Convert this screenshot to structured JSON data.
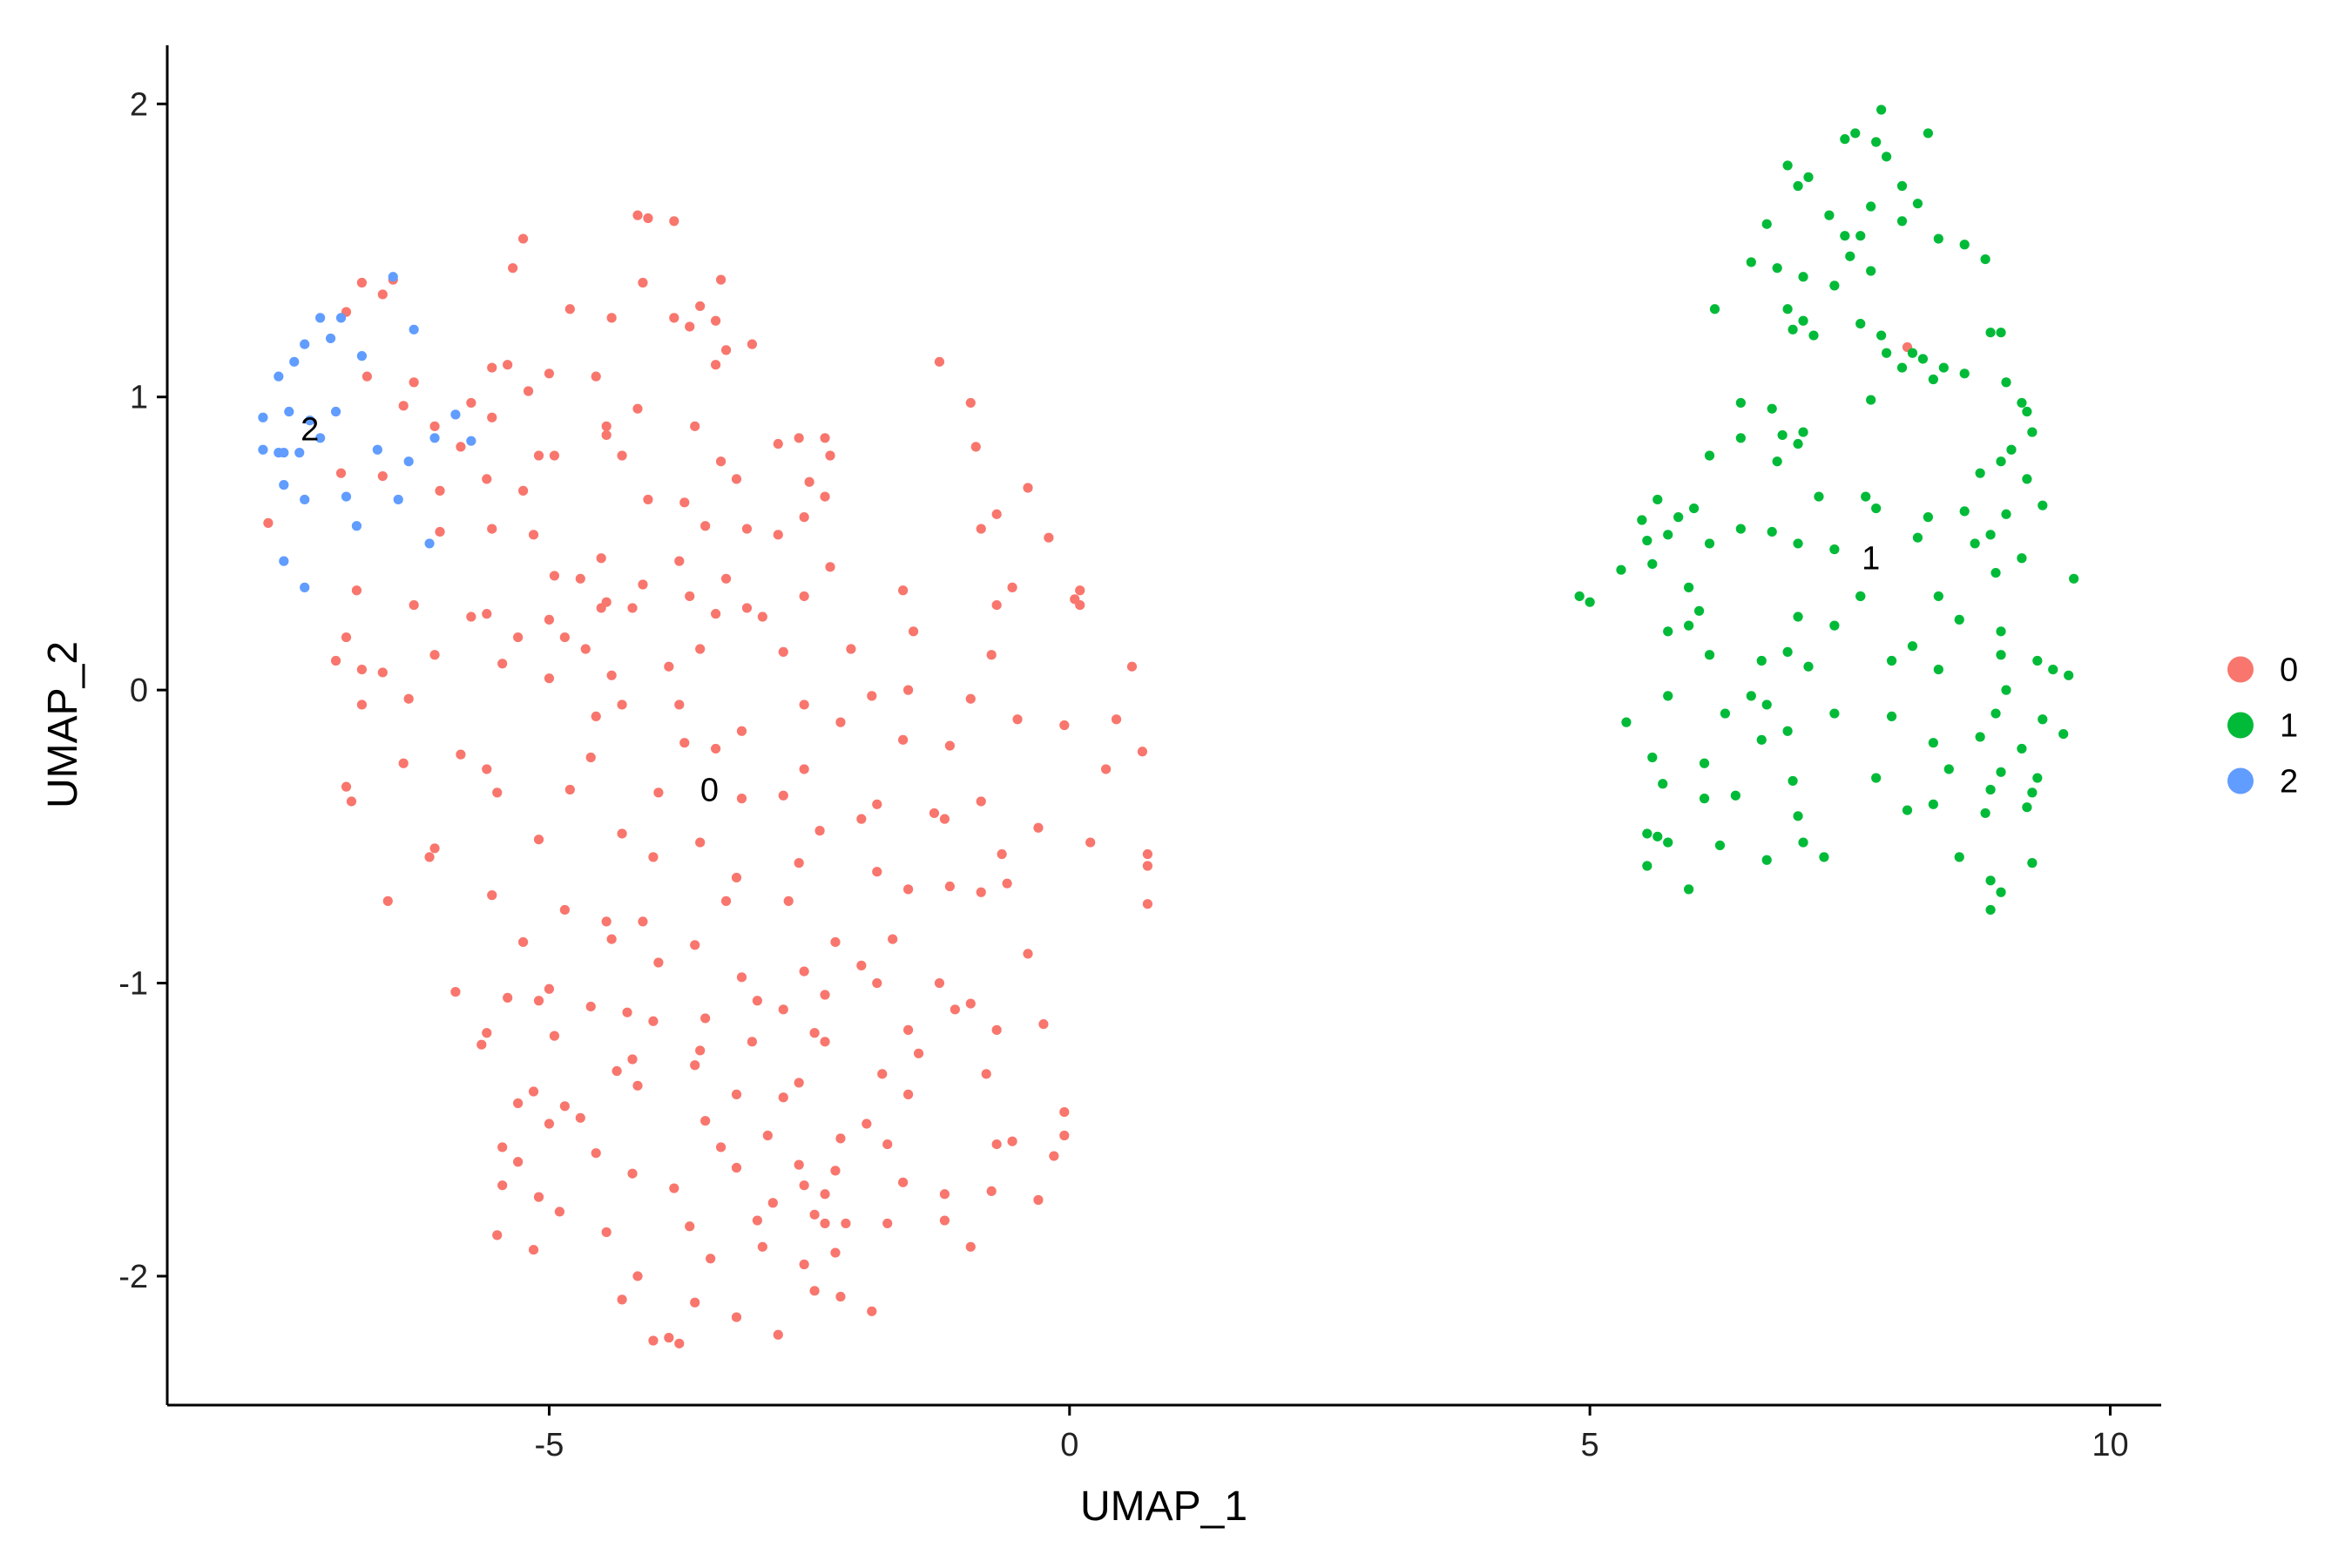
{
  "chart_data": {
    "type": "scatter",
    "x_label": "UMAP_1",
    "y_label": "UMAP_2",
    "xlim": [
      -8.67,
      10.49
    ],
    "ylim": [
      -2.44,
      2.2
    ],
    "xticks": [
      -5,
      0,
      5,
      10
    ],
    "yticks": [
      -2,
      -1,
      0,
      1,
      2
    ],
    "grid": false,
    "legend": "right",
    "annotations": [
      {
        "text": "0",
        "x": -3.46,
        "y": -0.34
      },
      {
        "text": "1",
        "x": 7.7,
        "y": 0.45
      },
      {
        "text": "2",
        "x": -7.3,
        "y": 0.89
      }
    ],
    "series": [
      {
        "name": "0",
        "color": "#F8766D",
        "x": [
          -4.15,
          -4.05,
          -3.8,
          -5.25,
          -5.35,
          -4.1,
          -3.35,
          -6.5,
          -6.8,
          -6.6,
          -6.95,
          -4.8,
          -3.55,
          -3.8,
          -4.4,
          -3.65,
          -3.4,
          -3.3,
          -3.05,
          -1.25,
          -3.4,
          -5.55,
          -5.4,
          -5.0,
          -4.55,
          -6.75,
          -6.3,
          -5.2,
          -5.75,
          -0.95,
          -4.15,
          -6.4,
          -6.1,
          -5.55,
          -4.45,
          -3.6,
          -4.45,
          -2.6,
          -2.35,
          -2.8,
          -5.85,
          -5.1,
          -4.95,
          -4.3,
          -3.35,
          -2.3,
          -0.9,
          -7.0,
          -6.6,
          -5.6,
          -3.2,
          -2.5,
          -6.05,
          -5.25,
          -4.05,
          -0.4,
          -2.35,
          -3.7,
          -2.55,
          -0.7,
          -7.7,
          -6.05,
          -5.55,
          -5.15,
          -3.5,
          -3.1,
          -2.8,
          -0.85,
          -0.2,
          -4.5,
          -3.75,
          -2.3,
          -4.7,
          -4.95,
          -3.3,
          -4.1,
          -6.85,
          -1.6,
          -0.55,
          0.1,
          0.05,
          -6.3,
          -4.45,
          -4.5,
          -3.65,
          -3.1,
          -2.55,
          -5.75,
          -5.6,
          -5.0,
          -4.2,
          -2.95,
          -3.4,
          -0.7,
          0.1,
          -6.95,
          -4.85,
          -3.55,
          -1.5,
          -6.1,
          -5.3,
          -4.65,
          -2.1,
          -7.05,
          -6.8,
          -5.45,
          -5.0,
          -4.4,
          -3.85,
          -2.75,
          -1.55,
          -0.75,
          0.6,
          -6.6,
          -4.3,
          -3.75,
          -2.55,
          -1.9,
          -0.95,
          -6.8,
          -6.35,
          -4.55,
          -3.15,
          -2.2,
          -0.5,
          0.45,
          -6.4,
          -5.6,
          -3.4,
          -1.6,
          -0.05,
          0.35,
          -5.85,
          -4.6,
          -3.7,
          -2.55,
          -1.15,
          0.7,
          -6.95,
          -5.5,
          -4.8,
          -3.95,
          -2.75,
          -1.85,
          -0.85,
          -6.9,
          -3.15,
          -1.3,
          -2.0,
          -6.1,
          -5.1,
          -4.3,
          -3.55,
          -2.4,
          -1.2,
          -0.3,
          0.2,
          -6.15,
          -4.0,
          -2.6,
          -1.85,
          -0.65,
          0.75,
          -3.2,
          -1.15,
          -0.85,
          0.75,
          0.75,
          -6.55,
          -5.55,
          -4.85,
          -3.3,
          -2.7,
          -1.55,
          -0.6,
          -4.45,
          -4.1,
          -3.6,
          -2.25,
          -1.7,
          -5.25,
          -4.4,
          -3.95,
          -2.55,
          -0.4,
          -5.9,
          -5.4,
          -3.15,
          -2.0,
          -1.25,
          -4.6,
          -3.0,
          -2.35,
          -1.85,
          -5.0,
          -5.1,
          -4.25,
          -3.5,
          -2.75,
          -1.1,
          -0.95,
          -4.0,
          -2.45,
          -1.55,
          -0.25,
          -5.6,
          -4.95,
          -3.55,
          -2.35,
          -1.45,
          -0.7,
          -5.65,
          -4.2,
          -3.05,
          -1.8,
          -4.35,
          -3.6,
          -2.6,
          -1.55,
          -0.8,
          -4.15,
          -2.75,
          -3.2,
          -5.15,
          -4.7,
          -3.5,
          -1.95,
          -5.3,
          -5.0,
          -0.05,
          -4.85,
          -2.2,
          -0.55,
          -5.45,
          -3.35,
          -2.9,
          -1.75,
          -0.05,
          -0.15,
          -4.55,
          -2.6,
          -0.7,
          -5.3,
          -3.2,
          -1.6,
          -0.75,
          -4.2,
          -2.25,
          -5.45,
          -3.8,
          -2.55,
          -1.2,
          -2.35,
          -5.1,
          -2.85,
          -3.0,
          -0.3,
          -4.9,
          -2.45,
          -5.5,
          -3.65,
          -2.95,
          -2.15,
          -1.75,
          -4.45,
          -2.35,
          -1.2,
          -3.45,
          -2.25,
          -0.95,
          -5.15,
          -2.55,
          -4.15,
          -2.45,
          -2.2,
          -4.3,
          -3.6,
          -3.2,
          -1.9,
          -3.85,
          -2.8,
          -3.75,
          -4.0,
          8.05
        ],
        "values": [
          1.62,
          1.61,
          1.6,
          1.54,
          1.44,
          1.39,
          1.4,
          1.4,
          1.39,
          1.35,
          1.29,
          1.3,
          1.31,
          1.27,
          1.27,
          1.24,
          1.26,
          1.16,
          1.18,
          1.12,
          1.11,
          1.1,
          1.11,
          1.08,
          1.07,
          1.07,
          1.05,
          1.02,
          0.98,
          0.98,
          0.96,
          0.97,
          0.9,
          0.93,
          0.9,
          0.9,
          0.87,
          0.86,
          0.86,
          0.84,
          0.83,
          0.8,
          0.8,
          0.8,
          0.78,
          0.8,
          0.83,
          0.74,
          0.73,
          0.72,
          0.72,
          0.71,
          0.68,
          0.68,
          0.65,
          0.69,
          0.66,
          0.64,
          0.59,
          0.6,
          0.57,
          0.54,
          0.55,
          0.53,
          0.56,
          0.55,
          0.53,
          0.55,
          0.52,
          0.45,
          0.44,
          0.42,
          0.38,
          0.39,
          0.38,
          0.36,
          0.34,
          0.34,
          0.35,
          0.34,
          0.31,
          0.29,
          0.3,
          0.28,
          0.32,
          0.28,
          0.32,
          0.25,
          0.26,
          0.24,
          0.28,
          0.25,
          0.26,
          0.29,
          0.29,
          0.18,
          0.18,
          0.14,
          0.2,
          0.12,
          0.18,
          0.14,
          0.14,
          0.1,
          0.07,
          0.09,
          0.04,
          0.05,
          0.08,
          0.13,
          0.0,
          0.12,
          0.08,
          0.06,
          -0.05,
          -0.05,
          -0.05,
          -0.02,
          -0.03,
          -0.05,
          -0.03,
          -0.09,
          -0.14,
          -0.11,
          -0.1,
          -0.1,
          -0.25,
          -0.27,
          -0.2,
          -0.17,
          -0.12,
          -0.27,
          -0.22,
          -0.23,
          -0.18,
          -0.27,
          -0.19,
          -0.21,
          -0.33,
          -0.35,
          -0.34,
          -0.35,
          -0.36,
          -0.39,
          -0.38,
          -0.38,
          -0.37,
          -0.42,
          -0.44,
          -0.54,
          -0.51,
          -0.49,
          -0.52,
          -0.48,
          -0.44,
          -0.47,
          -0.52,
          -0.57,
          -0.57,
          -0.59,
          -0.62,
          -0.56,
          -0.56,
          -0.64,
          -0.67,
          -0.69,
          -0.6,
          -0.73,
          -0.72,
          -0.7,
          -0.75,
          -0.72,
          -0.72,
          -0.68,
          -0.66,
          -0.79,
          -0.79,
          -0.87,
          -0.86,
          -0.85,
          -0.86,
          -0.85,
          -0.93,
          -0.96,
          -0.9,
          -1.03,
          -1.05,
          -0.98,
          -0.94,
          -1.0,
          -1.08,
          -1.06,
          -1.04,
          -1.0,
          -1.02,
          -1.06,
          -1.1,
          -1.12,
          -1.09,
          -1.09,
          -1.07,
          -1.13,
          -1.17,
          -1.16,
          -1.14,
          -1.17,
          -1.18,
          -1.23,
          -1.2,
          -1.24,
          -1.16,
          -1.21,
          -1.26,
          -1.2,
          -1.31,
          -1.3,
          -1.28,
          -1.34,
          -1.38,
          -1.31,
          -1.35,
          -1.39,
          -1.38,
          -1.37,
          -1.46,
          -1.47,
          -1.48,
          -1.41,
          -1.48,
          -1.44,
          -1.42,
          -1.53,
          -1.54,
          -1.56,
          -1.56,
          -1.52,
          -1.55,
          -1.52,
          -1.59,
          -1.58,
          -1.62,
          -1.55,
          -1.61,
          -1.63,
          -1.68,
          -1.71,
          -1.65,
          -1.64,
          -1.69,
          -1.7,
          -1.69,
          -1.72,
          -1.72,
          -1.73,
          -1.75,
          -1.81,
          -1.74,
          -1.78,
          -1.79,
          -1.86,
          -1.83,
          -1.9,
          -1.82,
          -1.82,
          -1.85,
          -1.82,
          -1.81,
          -1.94,
          -1.92,
          -1.9,
          -1.91,
          -1.96,
          -2.0,
          -2.05,
          -2.07,
          -2.08,
          -2.09,
          -2.14,
          -2.12,
          -2.21,
          -2.2,
          -2.23,
          -2.22,
          1.17
        ]
      },
      {
        "name": "1",
        "color": "#00BA38",
        "x": [
          7.8,
          7.55,
          7.45,
          8.25,
          7.75,
          7.85,
          6.9,
          7.1,
          7.0,
          8.0,
          8.15,
          7.7,
          7.3,
          8.0,
          7.6,
          8.35,
          6.7,
          7.45,
          8.6,
          7.5,
          6.8,
          7.05,
          7.7,
          8.8,
          6.55,
          7.35,
          6.2,
          6.9,
          7.05,
          6.95,
          7.15,
          7.6,
          7.8,
          7.85,
          8.1,
          8.2,
          8.4,
          8.6,
          8.85,
          8.95,
          8.0,
          8.3,
          9.0,
          9.15,
          9.2,
          6.45,
          6.75,
          7.7,
          6.45,
          6.85,
          7.05,
          7.0,
          6.15,
          6.8,
          8.95,
          9.25,
          9.05,
          8.75,
          9.2,
          5.65,
          5.85,
          6.0,
          5.5,
          7.2,
          7.65,
          7.75,
          8.25,
          8.6,
          9.0,
          9.35,
          5.75,
          5.55,
          6.15,
          6.45,
          6.75,
          7.0,
          7.35,
          8.15,
          8.85,
          8.7,
          9.15,
          5.3,
          4.9,
          5.0,
          5.6,
          5.95,
          7.6,
          8.9,
          9.65,
          6.05,
          5.95,
          7.0,
          7.35,
          7.6,
          8.35,
          8.55,
          8.95,
          5.75,
          8.1,
          8.95,
          9.3,
          9.45,
          9.6,
          6.15,
          6.65,
          6.9,
          7.1,
          7.9,
          8.35,
          9.0,
          9.35,
          5.75,
          6.55,
          6.7,
          8.9,
          9.55,
          5.35,
          6.3,
          7.35,
          7.9,
          8.75,
          9.15,
          8.95,
          9.3,
          8.3,
          5.6,
          6.1,
          6.65,
          6.9,
          7.75,
          8.45,
          8.85,
          9.25,
          6.4,
          6.95,
          5.7,
          6.1,
          7.0,
          8.05,
          8.3,
          8.8,
          9.2,
          5.55,
          5.65,
          5.75,
          6.25,
          7.05,
          7.25,
          6.7,
          8.55,
          9.25,
          5.55,
          5.95,
          8.85,
          8.95,
          8.85
        ],
        "values": [
          1.98,
          1.9,
          1.88,
          1.9,
          1.87,
          1.82,
          1.79,
          1.75,
          1.72,
          1.72,
          1.66,
          1.65,
          1.62,
          1.6,
          1.55,
          1.54,
          1.59,
          1.55,
          1.52,
          1.48,
          1.44,
          1.41,
          1.43,
          1.47,
          1.46,
          1.38,
          1.3,
          1.3,
          1.26,
          1.23,
          1.21,
          1.25,
          1.21,
          1.15,
          1.15,
          1.13,
          1.1,
          1.08,
          1.22,
          1.22,
          1.1,
          1.06,
          1.05,
          0.98,
          0.95,
          0.98,
          0.96,
          0.99,
          0.86,
          0.87,
          0.88,
          0.84,
          0.8,
          0.78,
          0.78,
          0.88,
          0.82,
          0.74,
          0.72,
          0.65,
          0.59,
          0.62,
          0.58,
          0.66,
          0.66,
          0.62,
          0.59,
          0.61,
          0.6,
          0.63,
          0.53,
          0.51,
          0.5,
          0.55,
          0.54,
          0.5,
          0.48,
          0.52,
          0.53,
          0.5,
          0.45,
          0.41,
          0.32,
          0.3,
          0.43,
          0.35,
          0.32,
          0.4,
          0.38,
          0.27,
          0.22,
          0.25,
          0.22,
          0.32,
          0.32,
          0.24,
          0.2,
          0.2,
          0.15,
          0.12,
          0.1,
          0.07,
          0.05,
          0.12,
          0.1,
          0.13,
          0.08,
          0.1,
          0.07,
          0.0,
          -0.1,
          -0.02,
          -0.02,
          -0.05,
          -0.08,
          -0.15,
          -0.11,
          -0.08,
          -0.08,
          -0.09,
          -0.16,
          -0.2,
          -0.28,
          -0.3,
          -0.18,
          -0.23,
          -0.25,
          -0.17,
          -0.14,
          -0.3,
          -0.27,
          -0.34,
          -0.35,
          -0.36,
          -0.31,
          -0.32,
          -0.37,
          -0.43,
          -0.41,
          -0.39,
          -0.42,
          -0.4,
          -0.49,
          -0.5,
          -0.52,
          -0.53,
          -0.52,
          -0.57,
          -0.58,
          -0.57,
          -0.59,
          -0.6,
          -0.68,
          -0.65,
          -0.69,
          -0.75
        ]
      },
      {
        "name": "2",
        "color": "#619CFF",
        "x": [
          -7.2,
          -7.0,
          -7.1,
          -7.35,
          -7.45,
          -7.6,
          -6.8,
          -6.5,
          -6.3,
          -7.75,
          -7.5,
          -7.3,
          -7.05,
          -7.75,
          -7.6,
          -7.55,
          -7.4,
          -7.2,
          -6.65,
          -6.35,
          -6.1,
          -5.9,
          -5.75,
          -7.55,
          -7.35,
          -6.95,
          -6.85,
          -6.45,
          -6.15,
          -7.55,
          -7.35
        ],
        "values": [
          1.27,
          1.27,
          1.2,
          1.18,
          1.12,
          1.07,
          1.14,
          1.41,
          1.23,
          0.93,
          0.95,
          0.92,
          0.95,
          0.82,
          0.81,
          0.81,
          0.81,
          0.86,
          0.82,
          0.78,
          0.86,
          0.94,
          0.85,
          0.7,
          0.65,
          0.66,
          0.56,
          0.65,
          0.5,
          0.44,
          0.35
        ]
      }
    ]
  }
}
